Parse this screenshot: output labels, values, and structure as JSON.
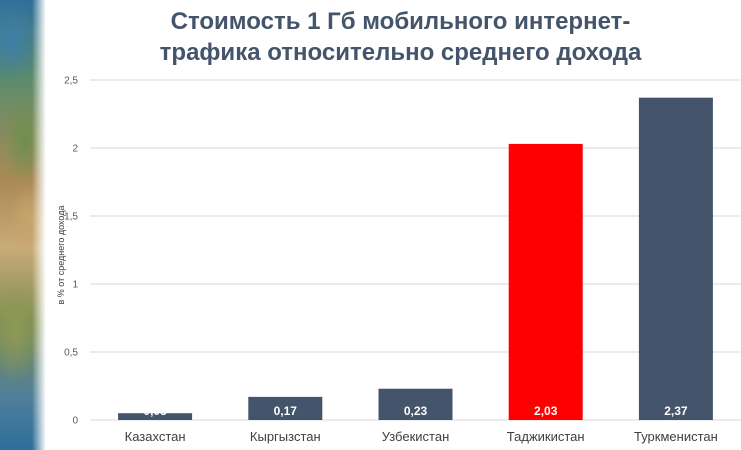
{
  "chart_data": {
    "type": "bar",
    "title_lines": [
      "Стоимость 1 Гб мобильного интернет-",
      "трафика относительно среднего дохода"
    ],
    "ylabel": "в % от среднего дохода",
    "xlabel": "",
    "categories": [
      "Казахстан",
      "Кыргызстан",
      "Узбекистан",
      "Таджикистан",
      "Туркменистан"
    ],
    "values": [
      0.05,
      0.17,
      0.23,
      2.03,
      2.37
    ],
    "value_labels": [
      "0,05",
      "0,17",
      "0,23",
      "2,03",
      "2,37"
    ],
    "yticks": [
      0,
      0.5,
      1,
      1.5,
      2,
      2.5
    ],
    "ytick_labels": [
      "0",
      "0,5",
      "1",
      "1,5",
      "2",
      "2,5"
    ],
    "ylim": [
      0,
      2.5
    ],
    "grid": true,
    "colors": {
      "default": "#44546a",
      "highlight": "#ff0000",
      "grid": "#d9d9d9"
    },
    "highlight_index": 3
  }
}
